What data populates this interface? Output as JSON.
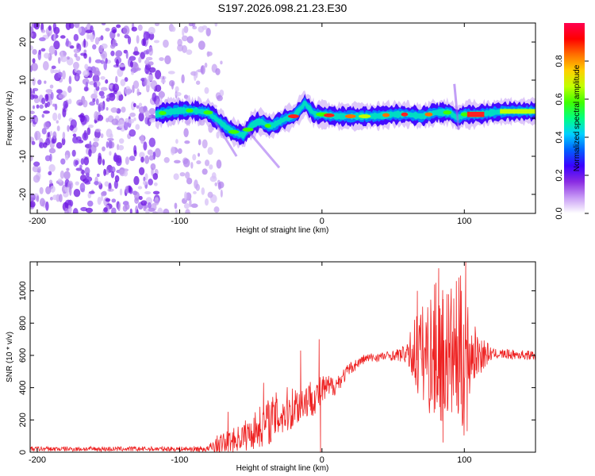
{
  "title": "S197.2026.098.21.23.E30",
  "chart_data": [
    {
      "type": "heatmap",
      "name": "spectrogram",
      "xlabel": "Height of straight line (km)",
      "ylabel": "Frequency (Hz)",
      "xlim": [
        -205,
        150
      ],
      "ylim": [
        -25,
        25
      ],
      "xticks": [
        -200,
        -100,
        0,
        100
      ],
      "yticks": [
        -20,
        -10,
        0,
        10,
        20
      ],
      "colorbar": {
        "label": "Normalized spectral amplitude",
        "range": [
          0.0,
          1.0
        ],
        "ticks": [
          0.0,
          0.2,
          0.4,
          0.6,
          0.8
        ],
        "colors": [
          "#ffffff",
          "#c89bf5",
          "#8a2be2",
          "#3a00ff",
          "#0060ff",
          "#00d0ff",
          "#00ff80",
          "#40ff00",
          "#c0ff00",
          "#ffd000",
          "#ff7000",
          "#ff0000",
          "#ff0050"
        ]
      },
      "ridge": {
        "x": [
          -117,
          -110,
          -100,
          -90,
          -80,
          -75,
          -70,
          -65,
          -60,
          -55,
          -50,
          -45,
          -42,
          -38,
          -35,
          -30,
          -25,
          -20,
          -15,
          -12,
          -10,
          -5,
          0,
          10,
          20,
          30,
          40,
          50,
          60,
          70,
          80,
          90,
          95,
          100,
          110,
          120,
          130,
          150
        ],
        "y": [
          1,
          1.5,
          2,
          2,
          1.5,
          0,
          -1.5,
          -3,
          -4,
          -4.5,
          -2,
          -1,
          -1,
          -2,
          -2,
          -1,
          0,
          0.5,
          2.5,
          4,
          3,
          1,
          1,
          0.5,
          0.5,
          0.5,
          0.6,
          1,
          1,
          0.5,
          1.5,
          1.5,
          0,
          1,
          1,
          1.5,
          1.8,
          1.8
        ]
      },
      "noise_region_x": [
        -205,
        -85
      ]
    },
    {
      "type": "line",
      "name": "snr",
      "xlabel": "Height of straight line (km)",
      "ylabel": "SNR (10 * v/v)",
      "xlim": [
        -205,
        150
      ],
      "ylim": [
        0,
        1180
      ],
      "xticks": [
        -200,
        -100,
        0,
        100
      ],
      "yticks": [
        0,
        200,
        400,
        600,
        800,
        1000
      ],
      "color": "#ee2222",
      "envelope": {
        "x": [
          -205,
          -100,
          -80,
          -75,
          -60,
          -50,
          -40,
          -30,
          -20,
          -10,
          -3,
          0,
          10,
          20,
          30,
          50,
          60,
          65,
          70,
          80,
          90,
          100,
          105,
          120,
          150
        ],
        "base": [
          20,
          20,
          20,
          40,
          80,
          120,
          180,
          230,
          280,
          330,
          350,
          380,
          420,
          520,
          580,
          600,
          610,
          620,
          610,
          610,
          610,
          600,
          610,
          610,
          600
        ],
        "amp": [
          15,
          15,
          20,
          60,
          80,
          110,
          140,
          160,
          140,
          120,
          110,
          100,
          60,
          40,
          30,
          30,
          60,
          250,
          300,
          450,
          420,
          520,
          200,
          30,
          30
        ]
      },
      "spikes": [
        {
          "x": -66,
          "y": 250
        },
        {
          "x": -41,
          "y": 430
        },
        {
          "x": -15,
          "y": 630
        },
        {
          "x": -2,
          "y": 700
        },
        {
          "x": -1,
          "y": 0
        },
        {
          "x": 67,
          "y": 1000
        },
        {
          "x": 80,
          "y": 1050
        },
        {
          "x": 82,
          "y": 1140
        },
        {
          "x": 85,
          "y": 60
        },
        {
          "x": 98,
          "y": 1000
        },
        {
          "x": 101,
          "y": 1180
        },
        {
          "x": 102,
          "y": 130
        }
      ]
    }
  ]
}
